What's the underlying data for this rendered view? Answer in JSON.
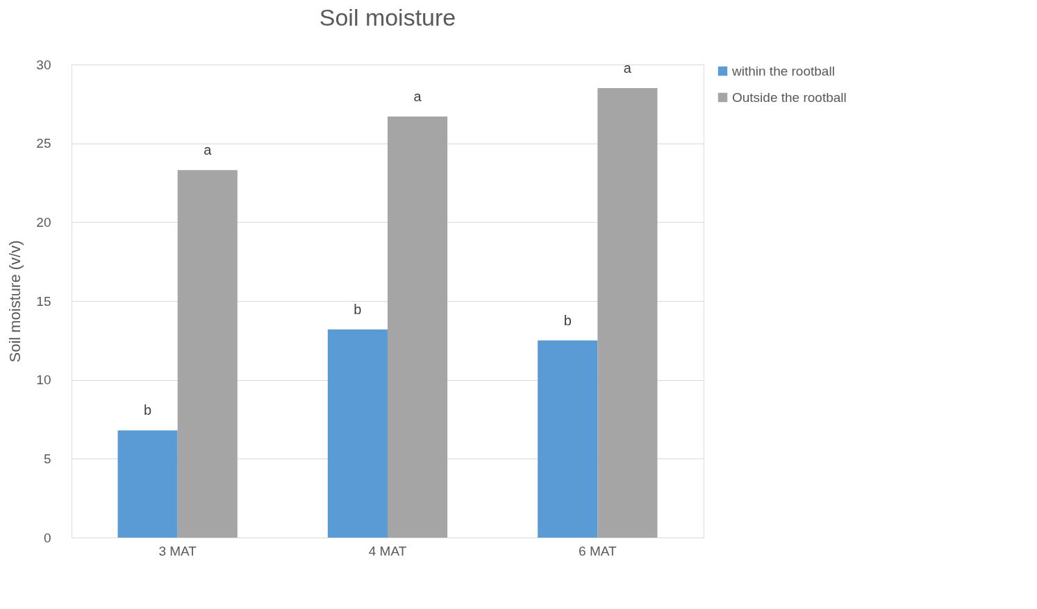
{
  "chart_data": {
    "type": "bar",
    "title": "Soil moisture",
    "ylabel": "Soil moisture (v/v)",
    "categories": [
      "3 MAT",
      "4 MAT",
      "6 MAT"
    ],
    "series": [
      {
        "name": "within the rootball",
        "color": "#5b9bd5",
        "values": [
          6.8,
          13.2,
          12.5
        ]
      },
      {
        "name": "Outside the rootball",
        "color": "#a5a5a5",
        "values": [
          23.3,
          26.7,
          28.5
        ]
      }
    ],
    "ylim": [
      0,
      30
    ],
    "yticks": [
      0,
      5,
      10,
      15,
      20,
      25,
      30
    ],
    "grid": "y",
    "legend": "right",
    "annotations": [
      {
        "text": "b",
        "x": "3 MAT",
        "y": 6.8
      },
      {
        "text": "a",
        "x": "3 MAT",
        "y": 23.3
      },
      {
        "text": "b",
        "x": "4 MAT",
        "y": 13.2
      },
      {
        "text": "a",
        "x": "4 MAT",
        "y": 26.7
      },
      {
        "text": "b",
        "x": "6 MAT",
        "y": 12.5
      },
      {
        "text": "a",
        "x": "6 MAT",
        "y": 28.5
      }
    ]
  }
}
